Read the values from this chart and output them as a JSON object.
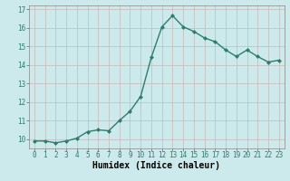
{
  "x": [
    0,
    1,
    2,
    3,
    4,
    5,
    6,
    7,
    8,
    9,
    10,
    11,
    12,
    13,
    14,
    15,
    16,
    17,
    18,
    19,
    20,
    21,
    22,
    23
  ],
  "y": [
    9.9,
    9.9,
    9.8,
    9.9,
    10.05,
    10.4,
    10.5,
    10.45,
    11.0,
    11.5,
    12.3,
    14.4,
    16.05,
    16.65,
    16.05,
    15.8,
    15.45,
    15.25,
    14.8,
    14.45,
    14.8,
    14.45,
    14.15,
    14.25
  ],
  "line_color": "#2d7d6e",
  "marker": "D",
  "marker_size": 2.0,
  "bg_color": "#cce9ec",
  "grid_color_v": "#c8b8b8",
  "grid_color_h": "#c8b8b8",
  "xlabel": "Humidex (Indice chaleur)",
  "ylim": [
    9.5,
    17.2
  ],
  "xlim": [
    -0.5,
    23.5
  ],
  "yticks": [
    10,
    11,
    12,
    13,
    14,
    15,
    16,
    17
  ],
  "xticks": [
    0,
    1,
    2,
    3,
    4,
    5,
    6,
    7,
    8,
    9,
    10,
    11,
    12,
    13,
    14,
    15,
    16,
    17,
    18,
    19,
    20,
    21,
    22,
    23
  ],
  "tick_label_fontsize": 5.5,
  "xlabel_fontsize": 7.0,
  "line_width": 1.0
}
